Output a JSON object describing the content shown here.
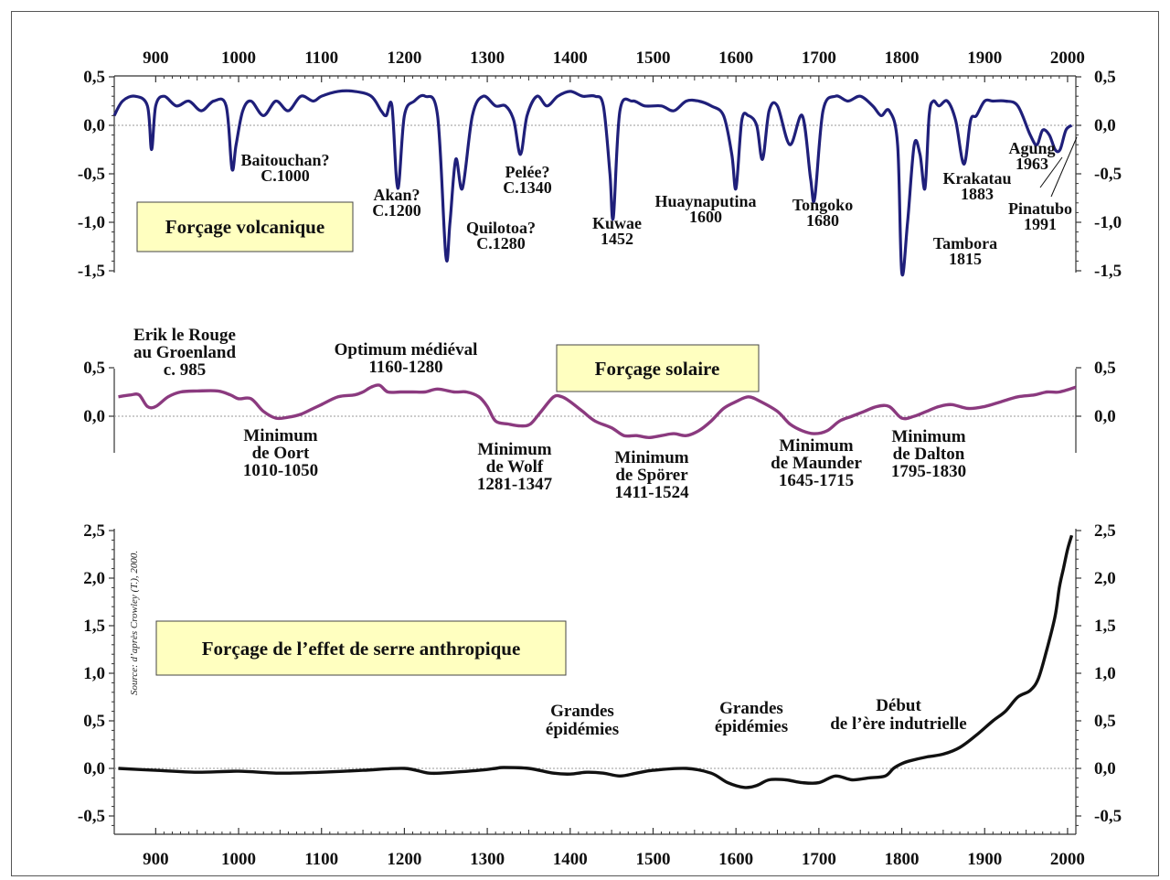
{
  "chart_data": [
    {
      "type": "line",
      "title": "Forçage volcanique",
      "x_ticks": [
        900,
        1000,
        1100,
        1200,
        1300,
        1400,
        1500,
        1600,
        1700,
        1800,
        1900,
        2000
      ],
      "y_ticks": [
        "0,5",
        "0,0",
        "-0,5",
        "-1,0",
        "-1,5"
      ],
      "ylim": [
        -1.55,
        0.5
      ],
      "xlim": [
        850,
        2010
      ],
      "color": "#1f1f7a",
      "series": [
        {
          "x": [
            850,
            860,
            875,
            890,
            895,
            900,
            910,
            925,
            940,
            955,
            970,
            985,
            992,
            997,
            1005,
            1015,
            1030,
            1045,
            1060,
            1075,
            1090,
            1100,
            1120,
            1140,
            1160,
            1172,
            1178,
            1185,
            1192,
            1200,
            1212,
            1225,
            1240,
            1250,
            1255,
            1262,
            1270,
            1282,
            1295,
            1310,
            1322,
            1332,
            1340,
            1348,
            1360,
            1372,
            1385,
            1400,
            1415,
            1430,
            1440,
            1448,
            1452,
            1460,
            1475,
            1490,
            1510,
            1525,
            1540,
            1555,
            1570,
            1585,
            1595,
            1600,
            1607,
            1615,
            1625,
            1632,
            1640,
            1650,
            1665,
            1680,
            1690,
            1695,
            1705,
            1720,
            1735,
            1750,
            1765,
            1775,
            1785,
            1795,
            1800,
            1807,
            1815,
            1822,
            1828,
            1833,
            1838,
            1845,
            1855,
            1865,
            1875,
            1883,
            1890,
            1900,
            1910,
            1925,
            1940,
            1955,
            1963,
            1970,
            1978,
            1985,
            1991,
            1998,
            2005
          ],
          "y": [
            0.1,
            0.25,
            0.3,
            0.2,
            -0.25,
            0.2,
            0.3,
            0.2,
            0.25,
            0.15,
            0.25,
            0.2,
            -0.45,
            -0.2,
            0.15,
            0.25,
            0.1,
            0.25,
            0.15,
            0.3,
            0.25,
            0.3,
            0.35,
            0.35,
            0.3,
            0.15,
            0.1,
            0.2,
            -0.65,
            0.1,
            0.25,
            0.3,
            0.1,
            -1.35,
            -1.0,
            -0.35,
            -0.65,
            0.1,
            0.3,
            0.2,
            0.2,
            0.05,
            -0.3,
            0.1,
            0.3,
            0.2,
            0.3,
            0.35,
            0.3,
            0.3,
            0.2,
            -0.5,
            -0.95,
            0.15,
            0.25,
            0.2,
            0.2,
            0.15,
            0.25,
            0.25,
            0.2,
            0.1,
            -0.3,
            -0.65,
            0.05,
            0.1,
            0.0,
            -0.35,
            0.15,
            0.2,
            -0.2,
            0.1,
            -0.55,
            -0.75,
            0.15,
            0.3,
            0.25,
            0.3,
            0.2,
            0.1,
            0.15,
            -0.2,
            -1.52,
            -1.0,
            -0.2,
            -0.3,
            -0.65,
            0.1,
            0.25,
            0.2,
            0.25,
            0.05,
            -0.4,
            0.05,
            0.1,
            0.25,
            0.25,
            0.25,
            0.2,
            -0.1,
            -0.2,
            -0.05,
            -0.1,
            -0.25,
            -0.25,
            -0.05,
            0.0
          ]
        }
      ],
      "annotations": [
        {
          "lines": [
            "Baitouchan?",
            "C.1000"
          ]
        },
        {
          "lines": [
            "Akan?",
            "C.1200"
          ]
        },
        {
          "lines": [
            "Quilotoa?",
            "C.1280"
          ]
        },
        {
          "lines": [
            "Pelée?",
            "C.1340"
          ]
        },
        {
          "lines": [
            "Kuwae",
            "1452"
          ]
        },
        {
          "lines": [
            "Huaynaputina",
            "1600"
          ]
        },
        {
          "lines": [
            "Tongoko",
            "1680"
          ]
        },
        {
          "lines": [
            "Tambora",
            "1815"
          ]
        },
        {
          "lines": [
            "Krakatau",
            "1883"
          ]
        },
        {
          "lines": [
            "Agung",
            "1963"
          ]
        },
        {
          "lines": [
            "Pinatubo",
            "1991"
          ]
        }
      ]
    },
    {
      "type": "line",
      "title": "Forçage solaire",
      "y_ticks": [
        "0,5",
        "0,0"
      ],
      "ylim": [
        -0.4,
        0.5
      ],
      "xlim": [
        850,
        2010
      ],
      "color": "#8b3a7f",
      "series": [
        {
          "x": [
            855,
            870,
            880,
            890,
            900,
            915,
            930,
            950,
            975,
            990,
            1000,
            1015,
            1030,
            1045,
            1060,
            1075,
            1090,
            1100,
            1120,
            1140,
            1150,
            1160,
            1170,
            1180,
            1195,
            1210,
            1225,
            1240,
            1260,
            1275,
            1290,
            1300,
            1310,
            1325,
            1340,
            1352,
            1365,
            1380,
            1390,
            1400,
            1415,
            1430,
            1450,
            1465,
            1480,
            1495,
            1510,
            1525,
            1540,
            1555,
            1570,
            1585,
            1600,
            1615,
            1630,
            1650,
            1665,
            1680,
            1695,
            1710,
            1725,
            1740,
            1755,
            1770,
            1785,
            1800,
            1815,
            1830,
            1845,
            1860,
            1880,
            1900,
            1920,
            1940,
            1960,
            1975,
            1990,
            2010
          ],
          "y": [
            0.2,
            0.22,
            0.22,
            0.1,
            0.1,
            0.2,
            0.25,
            0.26,
            0.26,
            0.22,
            0.18,
            0.18,
            0.05,
            -0.02,
            -0.01,
            0.02,
            0.08,
            0.12,
            0.2,
            0.22,
            0.25,
            0.3,
            0.32,
            0.25,
            0.25,
            0.25,
            0.25,
            0.28,
            0.25,
            0.25,
            0.2,
            0.1,
            -0.05,
            -0.08,
            -0.1,
            -0.08,
            0.05,
            0.2,
            0.2,
            0.15,
            0.05,
            -0.05,
            -0.12,
            -0.2,
            -0.2,
            -0.22,
            -0.2,
            -0.18,
            -0.2,
            -0.15,
            -0.05,
            0.08,
            0.15,
            0.2,
            0.15,
            0.05,
            -0.08,
            -0.15,
            -0.18,
            -0.15,
            -0.05,
            0.0,
            0.05,
            0.1,
            0.1,
            -0.02,
            0.0,
            0.05,
            0.1,
            0.12,
            0.08,
            0.1,
            0.15,
            0.2,
            0.22,
            0.25,
            0.25,
            0.3
          ]
        }
      ],
      "annotations": [
        {
          "lines": [
            "Erik le Rouge",
            "au Groenland",
            "c. 985"
          ]
        },
        {
          "lines": [
            "Optimum médiéval",
            "1160-1280"
          ]
        },
        {
          "lines": [
            "Minimum",
            "de Oort",
            "1010-1050"
          ]
        },
        {
          "lines": [
            "Minimum",
            "de Wolf",
            "1281-1347"
          ]
        },
        {
          "lines": [
            "Minimum",
            "de Spörer",
            "1411-1524"
          ]
        },
        {
          "lines": [
            "Minimum",
            "de Maunder",
            "1645-1715"
          ]
        },
        {
          "lines": [
            "Minimum",
            "de Dalton",
            "1795-1830"
          ]
        }
      ]
    },
    {
      "type": "line",
      "title": "Forçage de l’effet de serre anthropique",
      "x_ticks": [
        900,
        1000,
        1100,
        1200,
        1300,
        1400,
        1500,
        1600,
        1700,
        1800,
        1900,
        2000
      ],
      "y_ticks": [
        "2,5",
        "2,0",
        "1,5",
        "1,0",
        "0,5",
        "0,0",
        "-0,5"
      ],
      "ylim": [
        -0.7,
        2.5
      ],
      "xlim": [
        850,
        2010
      ],
      "color": "#111111",
      "series": [
        {
          "x": [
            855,
            900,
            950,
            1000,
            1050,
            1100,
            1150,
            1200,
            1230,
            1260,
            1290,
            1310,
            1320,
            1350,
            1380,
            1400,
            1420,
            1440,
            1460,
            1480,
            1500,
            1540,
            1570,
            1590,
            1610,
            1625,
            1640,
            1660,
            1680,
            1700,
            1720,
            1740,
            1760,
            1780,
            1790,
            1800,
            1810,
            1830,
            1850,
            1870,
            1890,
            1910,
            1925,
            1940,
            1955,
            1965,
            1975,
            1985,
            1990,
            1995,
            2000,
            2005
          ],
          "y": [
            0.0,
            -0.02,
            -0.04,
            -0.03,
            -0.05,
            -0.04,
            -0.02,
            0.0,
            -0.05,
            -0.04,
            -0.02,
            0.0,
            0.01,
            0.0,
            -0.05,
            -0.06,
            -0.04,
            -0.05,
            -0.08,
            -0.05,
            -0.02,
            0.0,
            -0.05,
            -0.15,
            -0.2,
            -0.18,
            -0.12,
            -0.12,
            -0.15,
            -0.15,
            -0.08,
            -0.12,
            -0.1,
            -0.08,
            0.0,
            0.05,
            0.08,
            0.12,
            0.15,
            0.22,
            0.35,
            0.5,
            0.6,
            0.75,
            0.82,
            0.95,
            1.25,
            1.6,
            1.9,
            2.1,
            2.3,
            2.45
          ]
        }
      ],
      "annotations": [
        {
          "lines": [
            "Grandes",
            "épidémies"
          ]
        },
        {
          "lines": [
            "Grandes",
            "épidémies"
          ]
        },
        {
          "lines": [
            "Début",
            "de l’ère indutrielle"
          ]
        }
      ],
      "source_note": "Source: d’après Crowley (T.), 2000."
    }
  ]
}
